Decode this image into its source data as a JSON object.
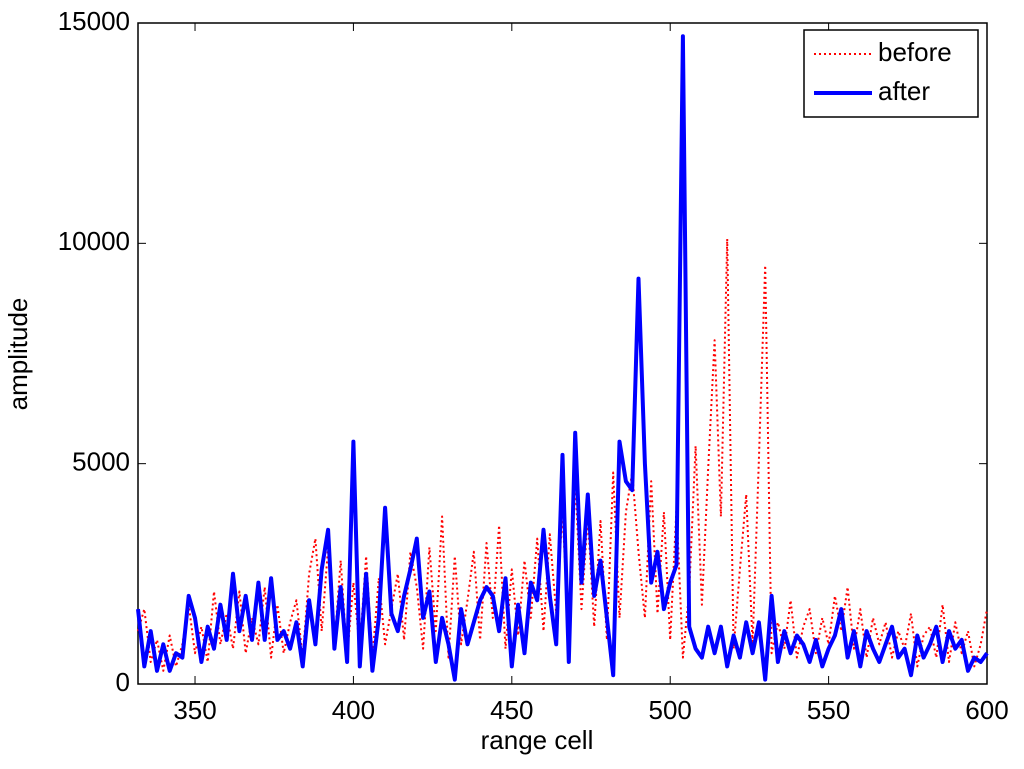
{
  "chart_data": {
    "type": "line",
    "xlabel": "range cell",
    "ylabel": "amplitude",
    "xlim": [
      332,
      600
    ],
    "ylim": [
      0,
      15000
    ],
    "xticks": [
      350,
      400,
      450,
      500,
      550,
      600
    ],
    "yticks": [
      0,
      5000,
      10000,
      15000
    ],
    "grid": false,
    "legend": "upper right",
    "x": [
      332,
      334,
      336,
      338,
      340,
      342,
      344,
      346,
      348,
      350,
      352,
      354,
      356,
      358,
      360,
      362,
      364,
      366,
      368,
      370,
      372,
      374,
      376,
      378,
      380,
      382,
      384,
      386,
      388,
      390,
      392,
      394,
      396,
      398,
      400,
      402,
      404,
      406,
      408,
      410,
      412,
      414,
      416,
      418,
      420,
      422,
      424,
      426,
      428,
      430,
      432,
      434,
      436,
      438,
      440,
      442,
      444,
      446,
      448,
      450,
      452,
      454,
      456,
      458,
      460,
      462,
      464,
      466,
      468,
      470,
      472,
      474,
      476,
      478,
      480,
      482,
      484,
      486,
      488,
      490,
      492,
      494,
      496,
      498,
      500,
      502,
      504,
      506,
      508,
      510,
      512,
      514,
      516,
      518,
      520,
      522,
      524,
      526,
      528,
      530,
      532,
      534,
      536,
      538,
      540,
      542,
      544,
      546,
      548,
      550,
      552,
      554,
      556,
      558,
      560,
      562,
      564,
      566,
      568,
      570,
      572,
      574,
      576,
      578,
      580,
      582,
      584,
      586,
      588,
      590,
      592,
      594,
      596,
      598,
      600
    ],
    "series": [
      {
        "name": "before",
        "color": "#ff0000",
        "style": "dotted",
        "values": [
          1200,
          1700,
          500,
          1000,
          300,
          1100,
          400,
          900,
          1800,
          700,
          1300,
          500,
          2100,
          900,
          1600,
          800,
          2100,
          700,
          1500,
          900,
          2200,
          600,
          1800,
          700,
          1400,
          1900,
          600,
          2500,
          3300,
          1200,
          3100,
          900,
          2800,
          600,
          2300,
          800,
          2900,
          600,
          2400,
          900,
          1700,
          2500,
          1000,
          3000,
          2200,
          800,
          3100,
          1200,
          3800,
          600,
          2900,
          900,
          1900,
          3000,
          1000,
          3200,
          1500,
          3600,
          800,
          2600,
          1100,
          2800,
          1500,
          3300,
          1200,
          3400,
          1600,
          3900,
          1000,
          4600,
          1700,
          3800,
          1300,
          3700,
          1000,
          4800,
          1500,
          3900,
          4800,
          3000,
          1500,
          4600,
          1600,
          3900,
          1000,
          4000,
          600,
          2100,
          5400,
          1800,
          4900,
          7800,
          3800,
          10100,
          800,
          2600,
          4300,
          900,
          5100,
          9500,
          700,
          1400,
          800,
          1900,
          600,
          1300,
          1700,
          700,
          1500,
          900,
          2000,
          1200,
          2200,
          800,
          1700,
          600,
          1500,
          900,
          1400,
          600,
          1200,
          800,
          1600,
          400,
          1100,
          1300,
          600,
          1800,
          500,
          1400,
          700,
          1200,
          400,
          900,
          1700
        ]
      },
      {
        "name": "after",
        "color": "#0000ff",
        "style": "solid",
        "values": [
          1700,
          400,
          1200,
          300,
          900,
          300,
          700,
          600,
          2000,
          1500,
          500,
          1300,
          800,
          1800,
          1000,
          2500,
          1200,
          2000,
          1000,
          2300,
          1000,
          2400,
          1000,
          1200,
          800,
          1400,
          400,
          1900,
          900,
          2600,
          3500,
          800,
          2200,
          500,
          5500,
          400,
          2500,
          300,
          1500,
          4000,
          1600,
          1200,
          2000,
          2600,
          3300,
          1500,
          2100,
          500,
          1500,
          900,
          100,
          1700,
          900,
          1400,
          1900,
          2200,
          2000,
          1200,
          2400,
          400,
          1800,
          700,
          2300,
          1900,
          3500,
          2000,
          900,
          5200,
          500,
          5700,
          2300,
          4300,
          2000,
          2800,
          1500,
          200,
          5500,
          4600,
          4400,
          9200,
          5000,
          2300,
          3000,
          1700,
          2300,
          2700,
          14700,
          1300,
          800,
          600,
          1300,
          700,
          1300,
          400,
          1100,
          600,
          1400,
          700,
          1400,
          100,
          2000,
          500,
          1200,
          700,
          1100,
          900,
          500,
          1000,
          400,
          800,
          1100,
          1700,
          600,
          1200,
          400,
          1200,
          800,
          500,
          900,
          1300,
          600,
          800,
          200,
          1100,
          600,
          900,
          1300,
          500,
          1200,
          800,
          1000,
          300,
          600,
          500,
          700
        ]
      }
    ]
  }
}
